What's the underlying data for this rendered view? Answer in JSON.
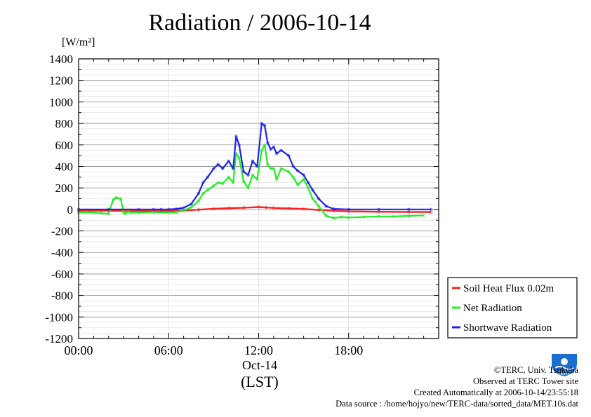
{
  "chart_data": {
    "type": "line",
    "title": "Radiation / 2006-10-14",
    "ylabel_unit": "[W/m²]",
    "ylim": [
      -1200,
      1400
    ],
    "yticks": [
      1400,
      1200,
      1000,
      800,
      600,
      400,
      200,
      0,
      -200,
      -400,
      -600,
      -800,
      -1000,
      -1200
    ],
    "xlim_hours": [
      0,
      24
    ],
    "xticks": [
      {
        "hour": 0,
        "label": "00:00"
      },
      {
        "hour": 6,
        "label": "06:00"
      },
      {
        "hour": 12,
        "label": "12:00"
      },
      {
        "hour": 18,
        "label": "18:00"
      }
    ],
    "xlabel_date": "Oct-14",
    "xlabel_tz": "(LST)",
    "grid": true,
    "legend_position": "right",
    "series": [
      {
        "name": "Soil Heat Flux 0.02m",
        "color": "#ff2020",
        "x": [
          0,
          2,
          4,
          6,
          7,
          8,
          9,
          10,
          11,
          12,
          12.5,
          13,
          14,
          15,
          16,
          17,
          18,
          20,
          22,
          23.5
        ],
        "y": [
          -12,
          -12,
          -14,
          -14,
          -10,
          -2,
          6,
          12,
          16,
          22,
          18,
          14,
          10,
          4,
          -4,
          -12,
          -18,
          -22,
          -24,
          -24
        ]
      },
      {
        "name": "Net Radiation",
        "color": "#20ee20",
        "x": [
          0,
          0.5,
          1,
          1.5,
          2,
          2.3,
          2.5,
          2.8,
          3.0,
          3.1,
          3.3,
          3.5,
          4,
          5,
          6,
          6.5,
          7,
          7.5,
          8,
          8.3,
          8.6,
          9,
          9.3,
          9.6,
          10,
          10.3,
          10.5,
          10.7,
          11,
          11.3,
          11.6,
          11.9,
          12.2,
          12.4,
          12.6,
          12.8,
          13,
          13.2,
          13.5,
          14,
          14.3,
          14.6,
          15,
          15.3,
          15.6,
          16,
          16.5,
          17,
          17.5,
          18,
          19,
          20,
          21,
          22,
          23
        ],
        "y": [
          -30,
          -25,
          -30,
          -35,
          -40,
          90,
          110,
          100,
          -30,
          -40,
          -20,
          -30,
          -30,
          -25,
          -30,
          -25,
          -10,
          20,
          80,
          150,
          180,
          220,
          250,
          240,
          300,
          250,
          520,
          480,
          260,
          200,
          320,
          280,
          550,
          600,
          420,
          380,
          380,
          280,
          380,
          350,
          300,
          230,
          280,
          200,
          100,
          30,
          -60,
          -80,
          -70,
          -75,
          -70,
          -65,
          -65,
          -60,
          -55
        ]
      },
      {
        "name": "Shortwave Radiation",
        "color": "#2020ee",
        "x": [
          0,
          2,
          4,
          5,
          5.5,
          6,
          6.5,
          7,
          7.5,
          8,
          8.3,
          8.6,
          9,
          9.3,
          9.6,
          10,
          10.3,
          10.5,
          10.7,
          11,
          11.3,
          11.6,
          11.9,
          12.2,
          12.4,
          12.6,
          12.8,
          13,
          13.2,
          13.5,
          14,
          14.3,
          14.6,
          15,
          15.3,
          15.6,
          16,
          16.5,
          17,
          18,
          20,
          22,
          23.5
        ],
        "y": [
          0,
          0,
          0,
          0,
          0,
          0,
          5,
          15,
          50,
          150,
          250,
          300,
          380,
          420,
          380,
          450,
          380,
          680,
          600,
          350,
          320,
          450,
          400,
          800,
          780,
          620,
          560,
          580,
          520,
          550,
          500,
          400,
          360,
          320,
          250,
          180,
          100,
          30,
          5,
          0,
          0,
          0,
          0
        ]
      }
    ]
  },
  "credits": {
    "line1": "©TERC, Univ. Tsukuba",
    "line2": "Observed at TERC Tower site",
    "line3": "Created Automatically at 2006-10-14/23:55:18",
    "line4": "Data source : /home/hojyo/new/TERC-data/sorted_data/MET.10s.dat"
  },
  "logo": {
    "text": "TERC",
    "color": "#1a6fd0",
    "icon": "terc-logo-icon"
  }
}
